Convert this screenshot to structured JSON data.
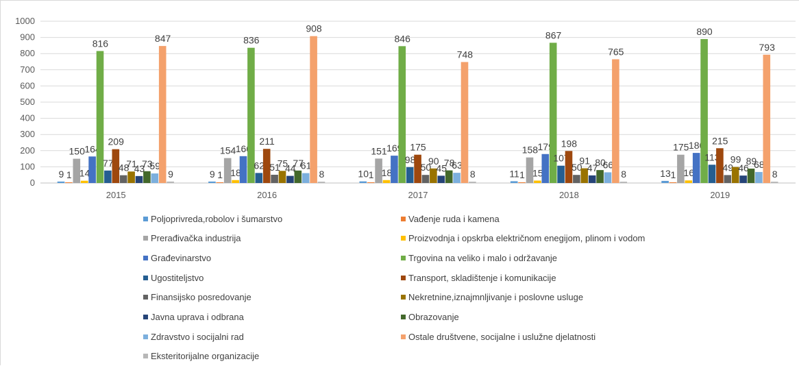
{
  "chart_data": {
    "type": "bar",
    "title": "",
    "xlabel": "",
    "ylabel": "",
    "ylim": [
      0,
      1000
    ],
    "yticks": [
      0,
      100,
      200,
      300,
      400,
      500,
      600,
      700,
      800,
      900,
      1000
    ],
    "grid": true,
    "legend_position": "bottom",
    "categories": [
      "2015",
      "2016",
      "2017",
      "2018",
      "2019"
    ],
    "series": [
      {
        "name": "Poljoprivreda,robolov i šumarstvo",
        "color": "#5b9bd5",
        "values": [
          9,
          9,
          10,
          11,
          13
        ]
      },
      {
        "name": "Vađenje ruda i kamena",
        "color": "#ed7d31",
        "values": [
          1,
          1,
          1,
          1,
          1
        ]
      },
      {
        "name": "Prerađivačka industrija",
        "color": "#a5a5a5",
        "values": [
          150,
          154,
          151,
          158,
          175
        ]
      },
      {
        "name": "Proizvodnja i opskrba električnom enegijom, plinom i vodom",
        "color": "#ffc000",
        "values": [
          14,
          18,
          18,
          15,
          16
        ]
      },
      {
        "name": "Građevinarstvo",
        "color": "#4472c4",
        "values": [
          164,
          166,
          169,
          179,
          186
        ]
      },
      {
        "name": "Trgovina na veliko i malo  i održavanje",
        "color": "#70ad47",
        "values": [
          816,
          836,
          846,
          867,
          890
        ]
      },
      {
        "name": "Ugostiteljstvo",
        "color": "#255e91",
        "values": [
          77,
          62,
          98,
          107,
          113
        ]
      },
      {
        "name": "Transport, skladištenje i komunikacije",
        "color": "#9e480e",
        "values": [
          209,
          211,
          175,
          198,
          215
        ]
      },
      {
        "name": "Finansijsko posredovanje",
        "color": "#636363",
        "values": [
          48,
          51,
          50,
          50,
          49
        ]
      },
      {
        "name": "Nekretnine,iznajmnljivanje i poslovne usluge",
        "color": "#997300",
        "values": [
          71,
          75,
          90,
          91,
          99
        ]
      },
      {
        "name": "Javna uprava i odbrana",
        "color": "#264478",
        "values": [
          43,
          44,
          45,
          47,
          46
        ]
      },
      {
        "name": "Obrazovanje",
        "color": "#43682b",
        "values": [
          73,
          77,
          78,
          80,
          89
        ]
      },
      {
        "name": "Zdravstvo i socijalni rad",
        "color": "#7cafdd",
        "values": [
          59,
          61,
          63,
          66,
          68
        ]
      },
      {
        "name": "Ostale društvene, socijalne i uslužne djelatnosti",
        "color": "#f4a16c",
        "values": [
          847,
          908,
          748,
          765,
          793
        ]
      },
      {
        "name": "Eksteritorijalne organizacije",
        "color": "#b7b7b7",
        "values": [
          9,
          8,
          8,
          8,
          8
        ]
      }
    ]
  }
}
